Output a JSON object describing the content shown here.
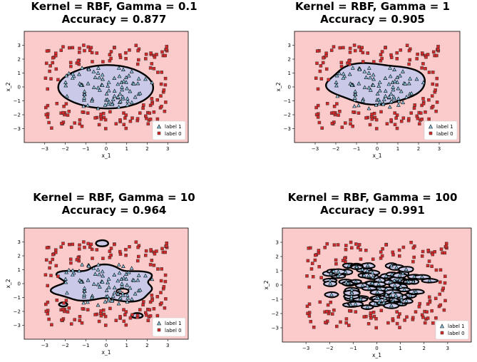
{
  "chart_data": [
    {
      "type": "scatter",
      "title_line1": "Kernel = RBF, Gamma = 0.1",
      "title_line2": "Accuracy = 0.877",
      "xlabel": "x_1",
      "ylabel": "x_2",
      "xlim": [
        -4,
        4
      ],
      "ylim": [
        -4,
        4
      ],
      "xticks": [
        -3,
        -2,
        -1,
        0,
        1,
        2,
        3
      ],
      "yticks": [
        3,
        2,
        1,
        0,
        -1,
        -2,
        -3
      ],
      "legend": [
        "label 1",
        "label 0"
      ],
      "legend_position": "lower-right",
      "colors": {
        "background": "#fbcaca",
        "region": "#cbc9e8",
        "class1": "#8ecae6",
        "class0": "#d62728",
        "boundary": "#000000"
      }
    },
    {
      "type": "scatter",
      "title_line1": "Kernel = RBF, Gamma = 1",
      "title_line2": "Accuracy = 0.905",
      "xlabel": "x_1",
      "ylabel": "x_2",
      "xlim": [
        -4,
        4
      ],
      "ylim": [
        -4,
        4
      ],
      "xticks": [
        -3,
        -2,
        -1,
        0,
        1,
        2,
        3
      ],
      "yticks": [
        3,
        2,
        1,
        0,
        -1,
        -2,
        -3
      ],
      "legend": [
        "label 1",
        "label 0"
      ],
      "legend_position": "lower-right",
      "colors": {
        "background": "#fbcaca",
        "region": "#cbc9e8",
        "class1": "#8ecae6",
        "class0": "#d62728",
        "boundary": "#000000"
      }
    },
    {
      "type": "scatter",
      "title_line1": "Kernel = RBF, Gamma = 10",
      "title_line2": "Accuracy = 0.964",
      "xlabel": "x_1",
      "ylabel": "x_2",
      "xlim": [
        -4,
        4
      ],
      "ylim": [
        -4,
        4
      ],
      "xticks": [
        -3,
        -2,
        -1,
        0,
        1,
        2,
        3
      ],
      "yticks": [
        3,
        2,
        1,
        0,
        -1,
        -2,
        -3
      ],
      "legend": [
        "label 1",
        "label 0"
      ],
      "legend_position": "lower-right",
      "colors": {
        "background": "#fbcaca",
        "region": "#cbc9e8",
        "class1": "#8ecae6",
        "class0": "#d62728",
        "boundary": "#000000"
      }
    },
    {
      "type": "scatter",
      "title_line1": "Kernel = RBF, Gamma = 100",
      "title_line2": "Accuracy = 0.991",
      "xlabel": "x_1",
      "ylabel": "x_2",
      "xlim": [
        -4,
        4
      ],
      "ylim": [
        -4,
        4
      ],
      "xticks": [
        -3,
        -2,
        -1,
        0,
        1,
        2,
        3
      ],
      "yticks": [
        3,
        2,
        1,
        0,
        -1,
        -2,
        -3
      ],
      "legend": [
        "label 1",
        "label 0"
      ],
      "legend_position": "lower-right",
      "colors": {
        "background": "#fbcaca",
        "region": "#cbc9e8",
        "class1": "#8ecae6",
        "class0": "#d62728",
        "boundary": "#000000"
      }
    }
  ]
}
